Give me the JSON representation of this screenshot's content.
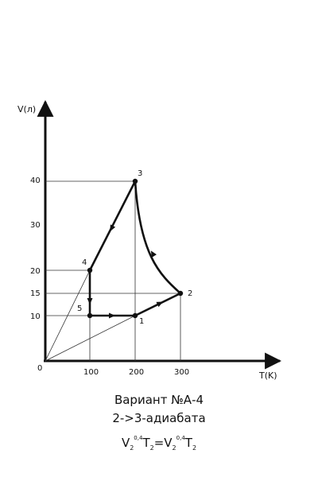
{
  "axes": {
    "y_label": "V(л)",
    "x_label": "T(K)",
    "origin_label": "0",
    "x_ticks": [
      "100",
      "200",
      "300"
    ],
    "y_ticks": [
      "10",
      "15",
      "20",
      "30",
      "40"
    ]
  },
  "chart_data": {
    "type": "line",
    "x_label": "T(K)",
    "y_label": "V(л)",
    "xlim": [
      0,
      500
    ],
    "ylim": [
      0,
      55
    ],
    "points": [
      {
        "label": "1",
        "T": 200,
        "V": 10
      },
      {
        "label": "2",
        "T": 300,
        "V": 15
      },
      {
        "label": "3",
        "T": 200,
        "V": 40
      },
      {
        "label": "4",
        "T": 100,
        "V": 20
      },
      {
        "label": "5",
        "T": 100,
        "V": 10
      }
    ],
    "cycle": [
      "1",
      "2",
      "3",
      "4",
      "5",
      "1"
    ],
    "isochore_rays_through": [
      "4",
      "1"
    ],
    "gridlines": "dashed projections from points to axes"
  },
  "caption": {
    "variant": "Вариант №А-4",
    "process": "2->3-адиабата"
  },
  "formula": {
    "V1": "V",
    "sub1": "2",
    "exp1": "0,4",
    "T1": "T",
    "tsub1": "2",
    "equals": "=",
    "V2": "V",
    "sub2": "2",
    "exp2": "0,4",
    "T2": "T",
    "tsub2": "2"
  }
}
